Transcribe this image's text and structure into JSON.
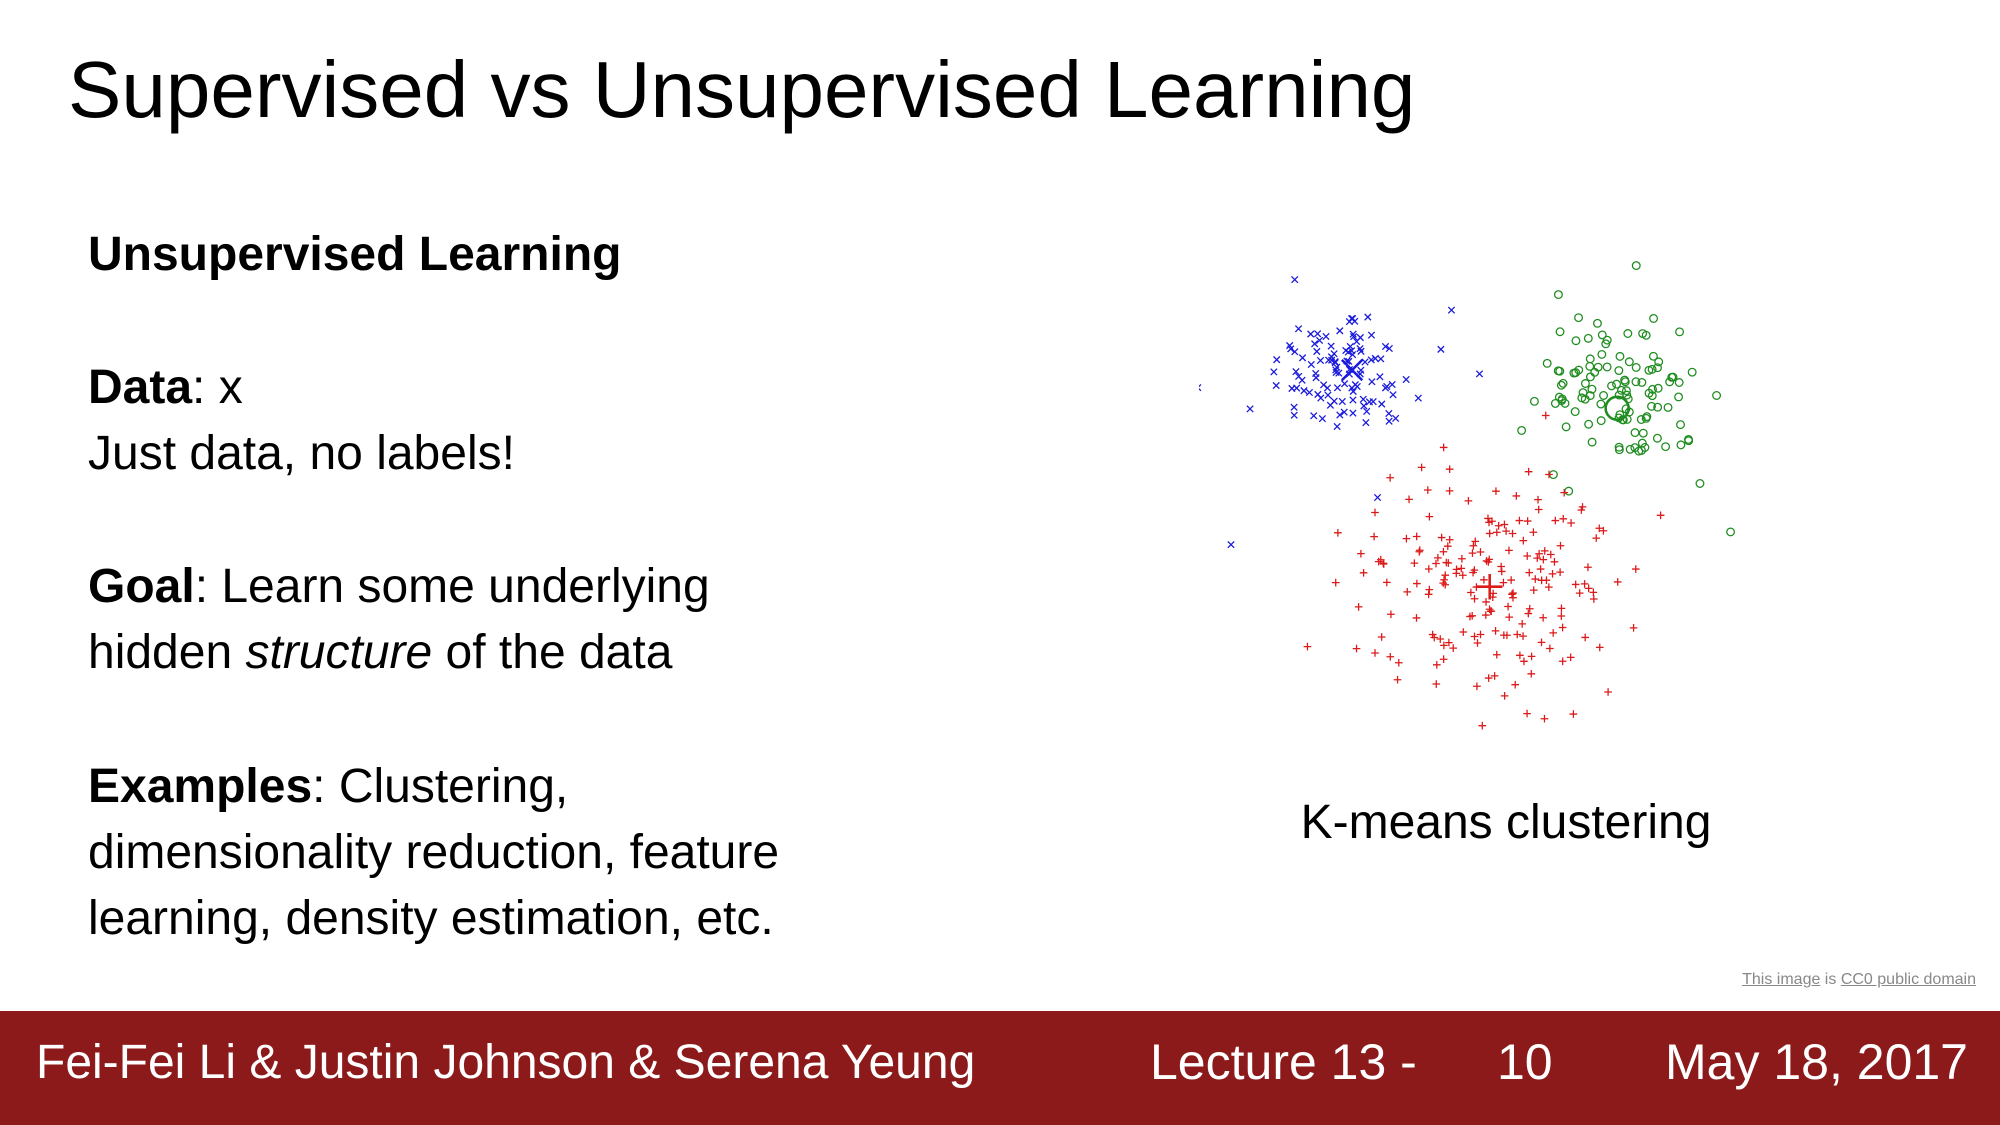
{
  "title": "Supervised vs Unsupervised Learning",
  "content": {
    "heading": "Unsupervised Learning",
    "data_label": "Data",
    "data_text": ": x",
    "data_note": "Just data, no labels!",
    "goal_label": "Goal",
    "goal_text": ": Learn some underlying",
    "goal_line2_start": "hidden ",
    "goal_line2_em": "structure",
    "goal_line2_end": " of the data",
    "examples_label": "Examples",
    "examples_text": ": Clustering,",
    "examples_line2": "dimensionality reduction, feature",
    "examples_line3": "learning, density estimation, etc."
  },
  "figure": {
    "caption": "K-means clustering",
    "credit": {
      "link1": "This image",
      "middle": " is ",
      "link2": "CC0 public domain"
    }
  },
  "footer": {
    "authors": "Fei-Fei Li & Justin Johnson & Serena Yeung",
    "lecture": "Lecture 13 -",
    "slide_number": "10",
    "date": "May 18, 2017"
  }
}
